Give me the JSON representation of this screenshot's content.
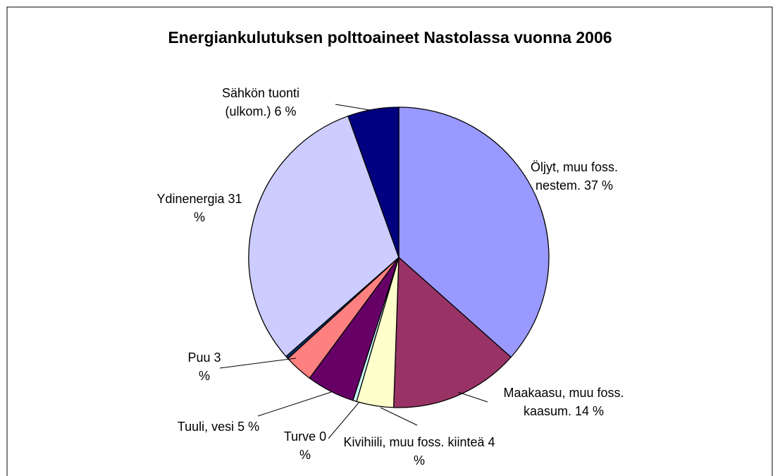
{
  "chart_data": {
    "type": "pie",
    "title": "Energiankulutuksen polttoaineet Nastolassa vuonna 2006",
    "categories": [
      "Öljyt, muu foss. nestem.",
      "Maakaasu, muu foss. kaasum.",
      "Kivihiili, muu foss. kiinteä",
      "Turve",
      "Tuuli, vesi",
      "Puu",
      null,
      "Ydinenergia",
      "Sähkön tuonti (ulkom.)"
    ],
    "values": [
      36.6,
      14,
      4,
      0.4,
      5.2,
      3.1,
      0.3,
      31,
      5.5
    ],
    "value_labels": [
      "37 %",
      "14 %",
      "4 %",
      "0 %",
      "5 %",
      "3 %",
      null,
      "31 %",
      "6 %"
    ],
    "colors": [
      "#9999ff",
      "#993366",
      "#ffffcc",
      "#ccffff",
      "#660066",
      "#ff8080",
      "#003366",
      "#ccccff",
      "#000080"
    ]
  }
}
